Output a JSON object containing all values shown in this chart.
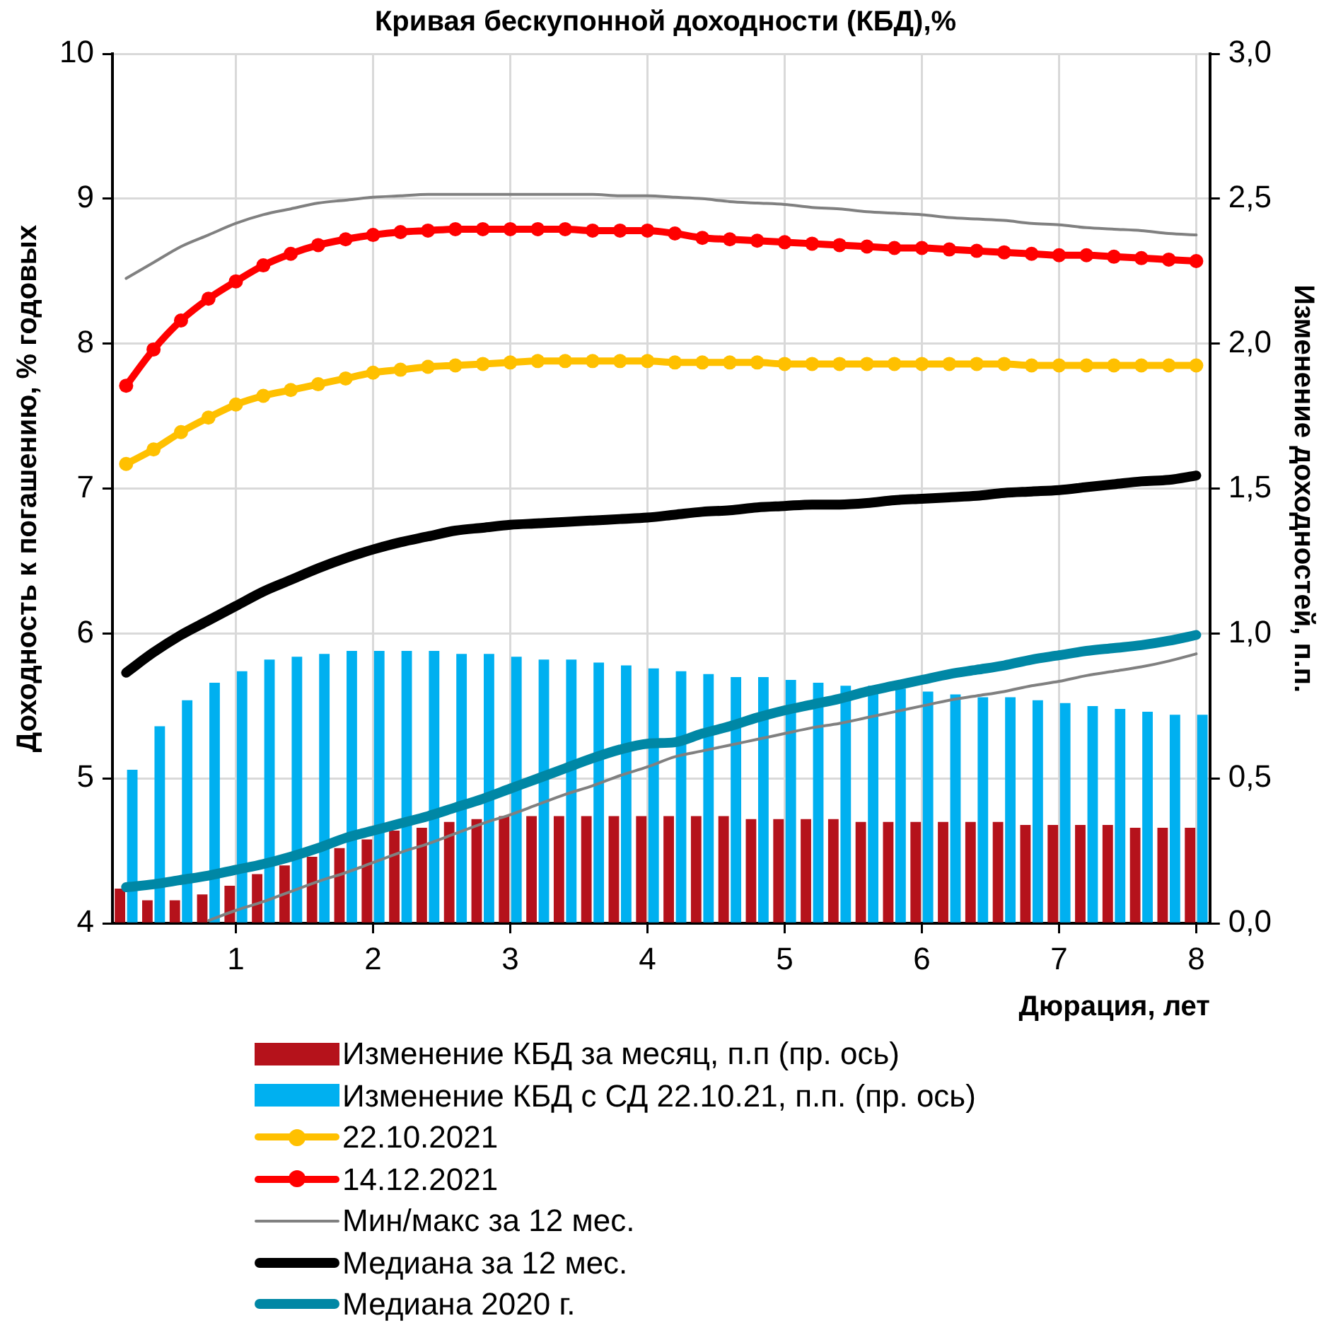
{
  "chart_data": {
    "type": "line",
    "title": "Кривая бескупонной доходности (КБД),%",
    "xlabel": "Дюрация, лет",
    "ylabel": "Доходность к погашению, % годовых",
    "y2label": "Изменение доходностей, п.п.",
    "x": [
      0.2,
      0.4,
      0.6,
      0.8,
      1.0,
      1.2,
      1.4,
      1.6,
      1.8,
      2.0,
      2.2,
      2.4,
      2.6,
      2.8,
      3.0,
      3.2,
      3.4,
      3.6,
      3.8,
      4.0,
      4.2,
      4.4,
      4.6,
      4.8,
      5.0,
      5.2,
      5.4,
      5.6,
      5.8,
      6.0,
      6.2,
      6.4,
      6.6,
      6.8,
      7.0,
      7.2,
      7.4,
      7.6,
      7.8,
      8.0
    ],
    "xlim": [
      0.1,
      8.1
    ],
    "xticks": [
      1,
      2,
      3,
      4,
      5,
      6,
      7,
      8
    ],
    "ylim": [
      4,
      10
    ],
    "yticks": [
      4,
      5,
      6,
      7,
      8,
      9,
      10
    ],
    "y2lim": [
      0,
      3
    ],
    "y2ticks": [
      {
        "value": 0,
        "label": "0,0"
      },
      {
        "value": 0.5,
        "label": "0,5"
      },
      {
        "value": 1,
        "label": "1,0"
      },
      {
        "value": 1.5,
        "label": "1,5"
      },
      {
        "value": 2,
        "label": "2,0"
      },
      {
        "value": 2.5,
        "label": "2,5"
      },
      {
        "value": 3,
        "label": "3,0"
      }
    ],
    "grid": true,
    "legend": "bottom",
    "series": [
      {
        "name": "Изменение КБД за месяц, п.п (пр. ось)",
        "type": "bar",
        "axis": "y2",
        "color": "#b5121b",
        "values": [
          0.12,
          0.08,
          0.08,
          0.1,
          0.13,
          0.17,
          0.2,
          0.23,
          0.26,
          0.29,
          0.32,
          0.33,
          0.35,
          0.36,
          0.37,
          0.37,
          0.37,
          0.37,
          0.37,
          0.37,
          0.37,
          0.37,
          0.37,
          0.36,
          0.36,
          0.36,
          0.36,
          0.35,
          0.35,
          0.35,
          0.35,
          0.35,
          0.35,
          0.34,
          0.34,
          0.34,
          0.34,
          0.33,
          0.33,
          0.33
        ]
      },
      {
        "name": "Изменение КБД с СД 22.10.21, п.п. (пр. ось)",
        "type": "bar",
        "axis": "y2",
        "color": "#00b0f0",
        "values": [
          0.53,
          0.68,
          0.77,
          0.83,
          0.87,
          0.91,
          0.92,
          0.93,
          0.94,
          0.94,
          0.94,
          0.94,
          0.93,
          0.93,
          0.92,
          0.91,
          0.91,
          0.9,
          0.89,
          0.88,
          0.87,
          0.86,
          0.85,
          0.85,
          0.84,
          0.83,
          0.82,
          0.82,
          0.81,
          0.8,
          0.79,
          0.78,
          0.78,
          0.77,
          0.76,
          0.75,
          0.74,
          0.73,
          0.72,
          0.72
        ]
      },
      {
        "name": "22.10.2021",
        "marker": "circle",
        "color": "#ffc000",
        "values": [
          7.17,
          7.27,
          7.39,
          7.49,
          7.58,
          7.64,
          7.68,
          7.72,
          7.76,
          7.8,
          7.82,
          7.84,
          7.85,
          7.86,
          7.87,
          7.88,
          7.88,
          7.88,
          7.88,
          7.88,
          7.87,
          7.87,
          7.87,
          7.87,
          7.86,
          7.86,
          7.86,
          7.86,
          7.86,
          7.86,
          7.86,
          7.86,
          7.86,
          7.85,
          7.85,
          7.85,
          7.85,
          7.85,
          7.85,
          7.85
        ]
      },
      {
        "name": "14.12.2021",
        "marker": "circle",
        "color": "#ff0000",
        "values": [
          7.71,
          7.96,
          8.16,
          8.31,
          8.43,
          8.54,
          8.62,
          8.68,
          8.72,
          8.75,
          8.77,
          8.78,
          8.79,
          8.79,
          8.79,
          8.79,
          8.79,
          8.78,
          8.78,
          8.78,
          8.76,
          8.73,
          8.72,
          8.71,
          8.7,
          8.69,
          8.68,
          8.67,
          8.66,
          8.66,
          8.65,
          8.64,
          8.63,
          8.62,
          8.61,
          8.61,
          8.6,
          8.59,
          8.58,
          8.57
        ]
      },
      {
        "name": "Мин/макс за 12 мес.",
        "color": "#808080",
        "values": [
          8.45,
          8.56,
          8.67,
          8.75,
          8.83,
          8.89,
          8.93,
          8.97,
          8.99,
          9.01,
          9.02,
          9.03,
          9.03,
          9.03,
          9.03,
          9.03,
          9.03,
          9.03,
          9.02,
          9.02,
          9.01,
          9.0,
          8.98,
          8.97,
          8.96,
          8.94,
          8.93,
          8.91,
          8.9,
          8.89,
          8.87,
          8.86,
          8.85,
          8.83,
          8.82,
          8.8,
          8.79,
          8.78,
          8.76,
          8.75
        ]
      },
      {
        "color": "#808080",
        "values": [
          null,
          null,
          null,
          4.02,
          4.09,
          4.15,
          4.22,
          4.29,
          4.35,
          4.42,
          4.49,
          4.55,
          4.62,
          4.69,
          4.75,
          4.82,
          4.89,
          4.95,
          5.02,
          5.08,
          5.15,
          5.19,
          5.23,
          5.27,
          5.31,
          5.35,
          5.38,
          5.42,
          5.46,
          5.5,
          5.54,
          5.57,
          5.6,
          5.64,
          5.67,
          5.71,
          5.74,
          5.77,
          5.81,
          5.86
        ]
      },
      {
        "name": "Медиана за 12 мес.",
        "color": "#000000",
        "values": [
          5.73,
          5.87,
          5.99,
          6.09,
          6.19,
          6.29,
          6.37,
          6.45,
          6.52,
          6.58,
          6.63,
          6.67,
          6.71,
          6.73,
          6.75,
          6.76,
          6.77,
          6.78,
          6.79,
          6.8,
          6.82,
          6.84,
          6.85,
          6.87,
          6.88,
          6.89,
          6.89,
          6.9,
          6.92,
          6.93,
          6.94,
          6.95,
          6.97,
          6.98,
          6.99,
          7.01,
          7.03,
          7.05,
          7.06,
          7.09
        ]
      },
      {
        "name": "Медиана 2020 г.",
        "color": "#0087a5",
        "values": [
          4.25,
          4.27,
          4.3,
          4.33,
          4.37,
          4.41,
          4.46,
          4.52,
          4.59,
          4.64,
          4.69,
          4.74,
          4.8,
          4.86,
          4.93,
          5.0,
          5.07,
          5.14,
          5.2,
          5.24,
          5.25,
          5.31,
          5.36,
          5.42,
          5.47,
          5.51,
          5.55,
          5.6,
          5.64,
          5.68,
          5.72,
          5.75,
          5.78,
          5.82,
          5.85,
          5.88,
          5.9,
          5.92,
          5.95,
          5.99
        ]
      }
    ]
  }
}
